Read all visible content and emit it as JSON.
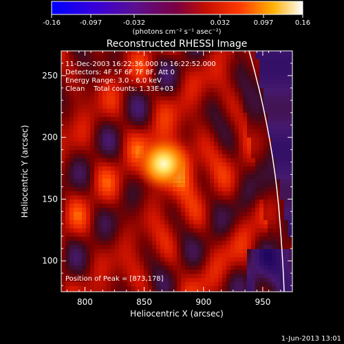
{
  "colorbar": {
    "tick_labels": [
      "-0.16",
      "-0.097",
      "-0.032",
      "0.032",
      "0.097",
      "0.16"
    ],
    "unit_label": "(photons cm⁻² s⁻¹ asec⁻²)",
    "range": [
      -0.16,
      0.16
    ]
  },
  "chart_data": {
    "type": "heatmap",
    "title": "Reconstructed RHESSI Image",
    "xlabel": "Heliocentric X (arcsec)",
    "ylabel": "Heliocentric Y (arcsec)",
    "xlim": [
      780,
      975
    ],
    "ylim": [
      75,
      270
    ],
    "x_ticks": [
      "800",
      "850",
      "900",
      "950"
    ],
    "y_ticks": [
      "100",
      "150",
      "200",
      "250"
    ],
    "x_tick_values": [
      800,
      850,
      900,
      950
    ],
    "y_tick_values": [
      100,
      150,
      200,
      250
    ],
    "peak": [
      873,
      178
    ],
    "info_lines": [
      "11-Dec-2003 16:22:36.000 to 16:22:52.000",
      "Detectors: 4F 5F 6F 7F 8F, Att 0",
      "Energy Range: 3.0 - 6.0 keV",
      "Clean    Total counts: 1.33E+03"
    ],
    "peak_label": "Position of Peak = [873,178]"
  },
  "footer": {
    "date": "1-Jun-2013 13:01"
  },
  "colors": {
    "background": "#000000",
    "axes": "#ffffff"
  }
}
